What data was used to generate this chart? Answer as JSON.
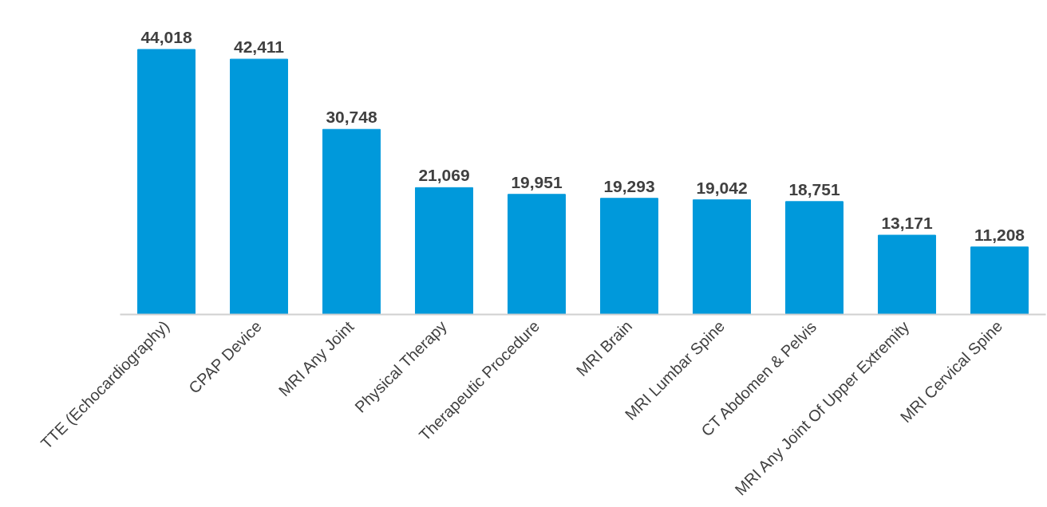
{
  "chart_data": {
    "type": "bar",
    "categories": [
      "TTE (Echocardiography)",
      "CPAP Device",
      "MRI Any Joint",
      "Physical Therapy",
      "Therapeutic Procedure",
      "MRI Brain",
      "MRI Lumbar Spine",
      "CT Abdomen & Pelvis",
      "MRI Any Joint Of Upper Extremity",
      "MRI Cervical Spine"
    ],
    "values": [
      44018,
      42411,
      30748,
      21069,
      19951,
      19293,
      19042,
      18751,
      13171,
      11208
    ],
    "value_labels": [
      "44,018",
      "42,411",
      "30,748",
      "21,069",
      "19,951",
      "19,293",
      "19,042",
      "18,751",
      "13,171",
      "11,208"
    ],
    "color": "#0099db"
  }
}
